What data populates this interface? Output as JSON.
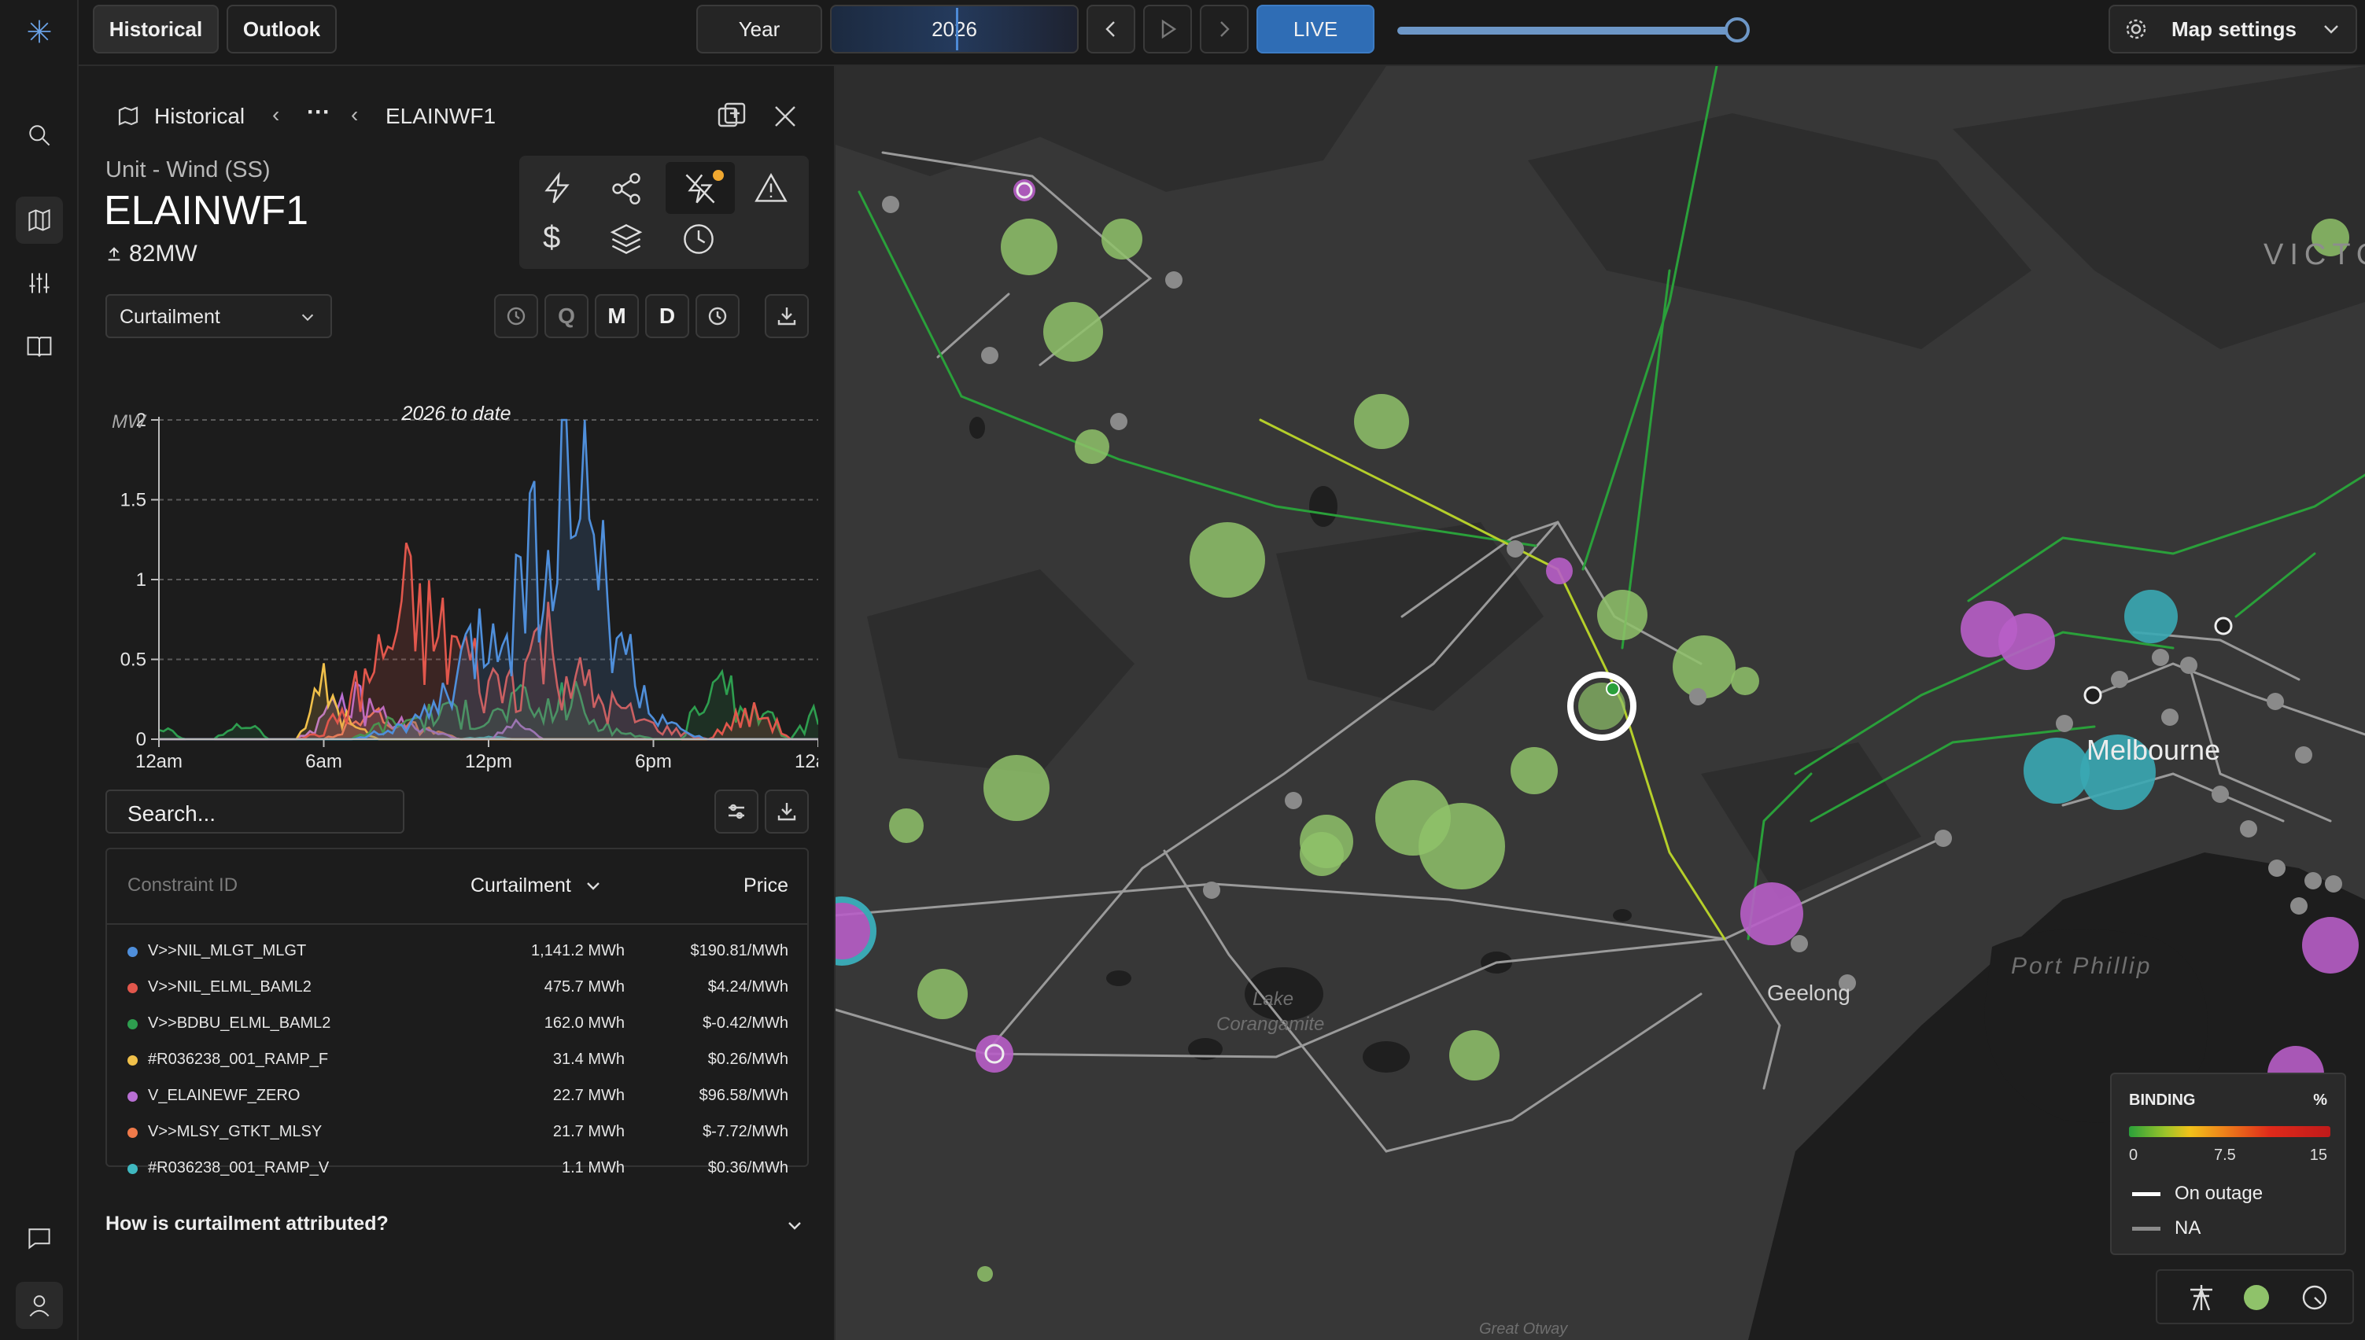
{
  "topbar": {
    "tabs": [
      "Historical",
      "Outlook"
    ],
    "period_label": "Year",
    "year_value": "2026",
    "live_label": "LIVE",
    "map_settings_label": "Map settings"
  },
  "panel": {
    "breadcrumb_root": "Historical",
    "breadcrumb_more": "···",
    "breadcrumb_current": "ELAINWF1",
    "unit_type": "Unit - Wind (SS)",
    "unit_name": "ELAINWF1",
    "capacity": "82MW",
    "metric_select": "Curtailment",
    "granularity": [
      "Q",
      "M",
      "D"
    ],
    "search_placeholder": "Search...",
    "attribution_question": "How is curtailment attributed?"
  },
  "chart_data": {
    "type": "area",
    "title": "2026 to date",
    "ylabel": "MW",
    "xlabel": "",
    "ylim": [
      0,
      2
    ],
    "yticks": [
      "0",
      "0.5",
      "1",
      "1.5",
      "2"
    ],
    "xticks": [
      "12am",
      "6am",
      "12pm",
      "6pm",
      "12am"
    ],
    "x_hours": [
      0,
      1,
      2,
      3,
      4,
      5,
      6,
      7,
      8,
      9,
      10,
      11,
      12,
      13,
      14,
      15,
      16,
      17,
      18,
      19,
      20,
      21,
      22,
      23,
      24
    ],
    "series": [
      {
        "name": "V>>NIL_MLGT_MLGT",
        "color": "#4f8fdb",
        "values": [
          0,
          0,
          0,
          0,
          0,
          0,
          0,
          0,
          0.05,
          0.1,
          0.2,
          0.5,
          0.8,
          1.2,
          1.5,
          1.9,
          1.4,
          0.6,
          0.2,
          0.05,
          0,
          0,
          0,
          0,
          0
        ]
      },
      {
        "name": "V>>NIL_ELML_BAML2",
        "color": "#e2574c",
        "values": [
          0,
          0,
          0,
          0,
          0,
          0,
          0.05,
          0.3,
          0.6,
          1.0,
          0.8,
          0.7,
          0.4,
          0.5,
          0.8,
          0.5,
          0.3,
          0.2,
          0.1,
          0.05,
          0,
          0.15,
          0.2,
          0,
          0
        ]
      },
      {
        "name": "V>>BDBU_ELML_BAML2",
        "color": "#2e9e4f",
        "values": [
          0.1,
          0,
          0,
          0.15,
          0,
          0,
          0,
          0,
          0.1,
          0.15,
          0.2,
          0.2,
          0.15,
          0.3,
          0.2,
          0.35,
          0.1,
          0.05,
          0,
          0,
          0.4,
          0.3,
          0.2,
          0,
          0.2
        ]
      },
      {
        "name": "#R036238_001_RAMP_F",
        "color": "#f0c04a",
        "values": [
          0,
          0,
          0,
          0,
          0,
          0,
          0.4,
          0.1,
          0,
          0,
          0,
          0,
          0,
          0,
          0,
          0,
          0,
          0,
          0,
          0,
          0,
          0,
          0,
          0,
          0
        ]
      },
      {
        "name": "V_ELAINEWF_ZERO",
        "color": "#b86fd3",
        "values": [
          0,
          0,
          0,
          0,
          0,
          0,
          0.15,
          0.3,
          0.2,
          0.1,
          0.05,
          0,
          0,
          0.1,
          0,
          0,
          0,
          0,
          0,
          0,
          0,
          0,
          0,
          0,
          0
        ]
      },
      {
        "name": "V>>MLSY_GTKT_MLSY",
        "color": "#f07a4a",
        "values": [
          0,
          0,
          0,
          0,
          0,
          0,
          0,
          0.1,
          0.2,
          0.1,
          0.05,
          0,
          0,
          0,
          0,
          0,
          0,
          0,
          0,
          0,
          0,
          0,
          0,
          0,
          0
        ]
      },
      {
        "name": "#R036238_001_RAMP_V",
        "color": "#3fb8c0",
        "values": [
          0,
          0,
          0,
          0,
          0,
          0,
          0,
          0,
          0,
          0,
          0,
          0,
          0.02,
          0,
          0,
          0,
          0,
          0,
          0,
          0,
          0,
          0,
          0,
          0,
          0
        ]
      }
    ]
  },
  "table": {
    "headers": {
      "id": "Constraint ID",
      "curtailment": "Curtailment",
      "price": "Price"
    },
    "rows": [
      {
        "color": "#4f8fdb",
        "id": "V>>NIL_MLGT_MLGT",
        "curtailment": "1,141.2 MWh",
        "price": "$190.81/MWh"
      },
      {
        "color": "#e2574c",
        "id": "V>>NIL_ELML_BAML2",
        "curtailment": "475.7 MWh",
        "price": "$4.24/MWh"
      },
      {
        "color": "#2e9e4f",
        "id": "V>>BDBU_ELML_BAML2",
        "curtailment": "162.0 MWh",
        "price": "$-0.42/MWh"
      },
      {
        "color": "#f0c04a",
        "id": "#R036238_001_RAMP_F",
        "curtailment": "31.4 MWh",
        "price": "$0.26/MWh"
      },
      {
        "color": "#b86fd3",
        "id": "V_ELAINEWF_ZERO",
        "curtailment": "22.7 MWh",
        "price": "$96.58/MWh"
      },
      {
        "color": "#f07a4a",
        "id": "V>>MLSY_GTKT_MLSY",
        "curtailment": "21.7 MWh",
        "price": "$-7.72/MWh"
      },
      {
        "color": "#3fb8c0",
        "id": "#R036238_001_RAMP_V",
        "curtailment": "1.1 MWh",
        "price": "$0.36/MWh"
      }
    ]
  },
  "map": {
    "labels": {
      "victoria": "VICTO",
      "melbourne": "Melbourne",
      "port_phillip": "Port Phillip",
      "geelong": "Geelong",
      "lake1": "Lake",
      "lake2": "Corangamite",
      "otway": "Great Otway"
    },
    "legend": {
      "title": "BINDING",
      "unit": "%",
      "ticks": [
        "0",
        "7.5",
        "15"
      ],
      "on_outage": "On outage",
      "na": "NA"
    }
  },
  "colors": {
    "accent_live": "#2f6db5",
    "wind_green": "#8fc26a",
    "load_purple": "#b85ec8",
    "city_teal": "#3aa8b4"
  }
}
